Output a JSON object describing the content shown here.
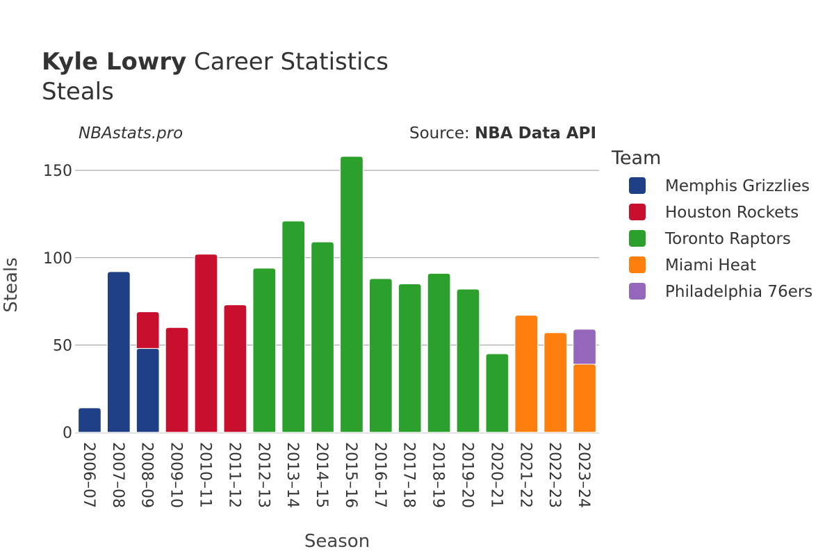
{
  "chart_data": {
    "type": "bar",
    "stacked": true,
    "title": {
      "bold": "Kyle Lowry",
      "rest": " Career Statistics"
    },
    "subtitle": "Steals",
    "xlabel": "Season",
    "ylabel": "Steals",
    "ylim": [
      0,
      160
    ],
    "yticks": [
      0,
      50,
      100,
      150
    ],
    "grid": true,
    "legend_title": "Team",
    "legend_position": "right",
    "categories": [
      "2006–07",
      "2007–08",
      "2008–09",
      "2009–10",
      "2010–11",
      "2011–12",
      "2012–13",
      "2013–14",
      "2014–15",
      "2015–16",
      "2016–17",
      "2017–18",
      "2018–19",
      "2019–20",
      "2020–21",
      "2021–22",
      "2022–23",
      "2023–24"
    ],
    "series": [
      {
        "name": "Memphis Grizzlies",
        "color": "#1f3f86",
        "values": [
          14,
          92,
          48,
          0,
          0,
          0,
          0,
          0,
          0,
          0,
          0,
          0,
          0,
          0,
          0,
          0,
          0,
          0
        ]
      },
      {
        "name": "Houston Rockets",
        "color": "#c8102e",
        "values": [
          0,
          0,
          21,
          60,
          102,
          73,
          0,
          0,
          0,
          0,
          0,
          0,
          0,
          0,
          0,
          0,
          0,
          0
        ]
      },
      {
        "name": "Toronto Raptors",
        "color": "#2ca02c",
        "values": [
          0,
          0,
          0,
          0,
          0,
          0,
          94,
          121,
          109,
          158,
          88,
          85,
          91,
          82,
          45,
          0,
          0,
          0
        ]
      },
      {
        "name": "Miami Heat",
        "color": "#ff7f0e",
        "values": [
          0,
          0,
          0,
          0,
          0,
          0,
          0,
          0,
          0,
          0,
          0,
          0,
          0,
          0,
          0,
          67,
          57,
          39
        ]
      },
      {
        "name": "Philadelphia 76ers",
        "color": "#9467bd",
        "values": [
          0,
          0,
          0,
          0,
          0,
          0,
          0,
          0,
          0,
          0,
          0,
          0,
          0,
          0,
          0,
          0,
          0,
          20
        ]
      }
    ]
  },
  "credits": {
    "site": "NBAstats.pro",
    "source_prefix": "Source: ",
    "source_name": "NBA Data API"
  }
}
